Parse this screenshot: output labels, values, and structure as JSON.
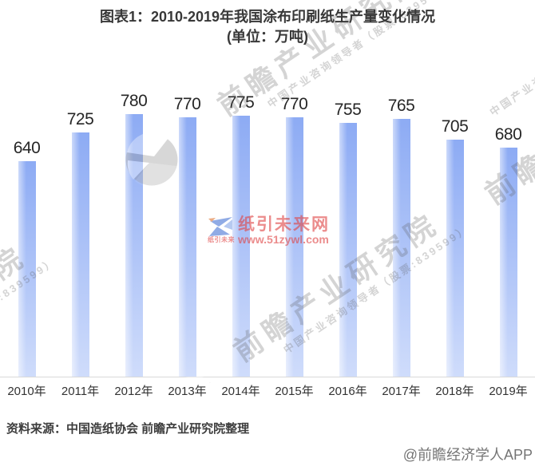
{
  "title": {
    "line1": "图表1：2010-2019年我国涂布印刷纸生产量变化情况",
    "line2": "(单位：万吨)"
  },
  "chart_data": {
    "type": "bar",
    "title": "图表1：2010-2019年我国涂布印刷纸生产量变化情况",
    "unit_label": "单位：万吨",
    "categories": [
      "2010年",
      "2011年",
      "2012年",
      "2013年",
      "2014年",
      "2015年",
      "2016年",
      "2017年",
      "2018年",
      "2019年"
    ],
    "values": [
      640,
      725,
      780,
      770,
      775,
      770,
      755,
      765,
      705,
      680
    ],
    "ylim": [
      0,
      780
    ],
    "grid": false,
    "legend": "none",
    "value_labels_shown": true
  },
  "footer": {
    "source_note": "资料来源：中国造纸协会 前瞻产业研究院整理",
    "credit": "@前瞻经济学人APP"
  },
  "watermarks": {
    "brand": {
      "text": "前瞻产业研究院",
      "subtext": "中国产业咨询领导者（股票:839599）"
    },
    "site": {
      "name": "纸引未来网",
      "url": "www.51zywl.com",
      "logo_caption": "纸引未来"
    }
  },
  "colors": {
    "bar_gradient_top": "#8dabf4",
    "bar_gradient_bottom": "#cfdcfb",
    "axis_line": "#d9d9d9",
    "title_text": "#383838",
    "value_label": "#262626",
    "x_label": "#333333",
    "source_text": "#3d3d3d",
    "credit_text": "#757575",
    "site_red": "#e04646",
    "site_logo_blue": "#4d79d6"
  }
}
